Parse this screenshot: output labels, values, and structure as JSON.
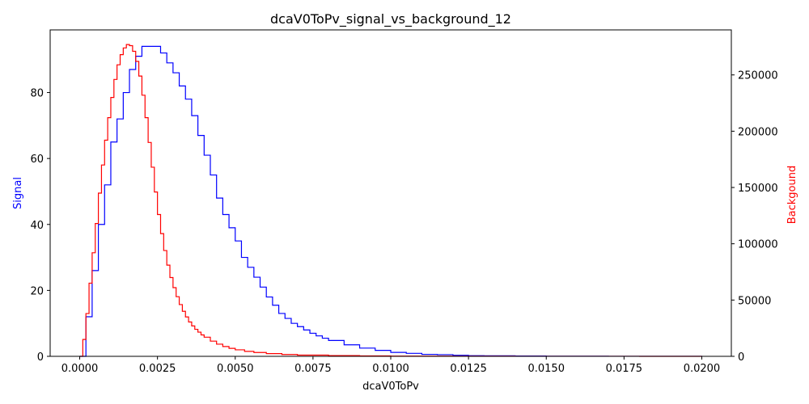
{
  "chart_data": {
    "type": "line",
    "title": "dcaV0ToPv_signal_vs_background_12",
    "xlabel": "dcaV0ToPv",
    "ylabel_left": "Signal",
    "ylabel_right": "Backgound",
    "xlim": [
      -0.00095,
      0.02095
    ],
    "ylim_left": [
      0,
      99
    ],
    "ylim_right": [
      0,
      290000
    ],
    "grid": false,
    "x_ticks": [
      "0.0000",
      "0.0025",
      "0.0050",
      "0.0075",
      "0.0100",
      "0.0125",
      "0.0150",
      "0.0175",
      "0.0200"
    ],
    "x_tick_values": [
      0,
      0.0025,
      0.005,
      0.0075,
      0.01,
      0.0125,
      0.015,
      0.0175,
      0.02
    ],
    "y_left_ticks": [
      "0",
      "20",
      "40",
      "60",
      "80"
    ],
    "y_left_tick_values": [
      0,
      20,
      40,
      60,
      80
    ],
    "y_right_ticks": [
      "0",
      "50000",
      "100000",
      "150000",
      "200000",
      "250000"
    ],
    "y_right_tick_values": [
      0,
      50000,
      100000,
      150000,
      200000,
      250000
    ],
    "series": [
      {
        "name": "Signal",
        "axis": "left",
        "color": "#0000ff",
        "x": [
          0.0,
          0.0002,
          0.0004,
          0.0006,
          0.0008,
          0.001,
          0.0012,
          0.0014,
          0.0016,
          0.0018,
          0.002,
          0.0022,
          0.0024,
          0.0026,
          0.0028,
          0.003,
          0.0032,
          0.0034,
          0.0036,
          0.0038,
          0.004,
          0.0042,
          0.0044,
          0.0046,
          0.0048,
          0.005,
          0.0052,
          0.0054,
          0.0056,
          0.0058,
          0.006,
          0.0062,
          0.0064,
          0.0066,
          0.0068,
          0.007,
          0.0072,
          0.0074,
          0.0076,
          0.0078,
          0.008,
          0.0085,
          0.009,
          0.0095,
          0.01,
          0.0105,
          0.011,
          0.0115,
          0.012,
          0.0125,
          0.013,
          0.014,
          0.015,
          0.016,
          0.017,
          0.018,
          0.019,
          0.02
        ],
        "values": [
          0,
          12,
          26,
          40,
          52,
          65,
          72,
          80,
          87,
          91,
          94,
          94,
          94,
          92,
          89,
          86,
          82,
          78,
          73,
          67,
          61,
          55,
          48,
          43,
          39,
          35,
          30,
          27,
          24,
          21,
          18,
          15.5,
          13,
          11.5,
          10,
          9,
          8,
          7,
          6.2,
          5.5,
          4.8,
          3.5,
          2.5,
          1.8,
          1.2,
          0.9,
          0.6,
          0.5,
          0.3,
          0.2,
          0.15,
          0.1,
          0.05,
          0.03,
          0.02,
          0.01,
          0.01,
          0
        ]
      },
      {
        "name": "Backgound",
        "axis": "right",
        "color": "#ff0000",
        "x": [
          0.0,
          0.0001,
          0.0002,
          0.0003,
          0.0004,
          0.0005,
          0.0006,
          0.0007,
          0.0008,
          0.0009,
          0.001,
          0.0011,
          0.0012,
          0.0013,
          0.0014,
          0.0015,
          0.0016,
          0.0017,
          0.0018,
          0.0019,
          0.002,
          0.0021,
          0.0022,
          0.0023,
          0.0024,
          0.0025,
          0.0026,
          0.0027,
          0.0028,
          0.0029,
          0.003,
          0.0031,
          0.0032,
          0.0033,
          0.0034,
          0.0035,
          0.0036,
          0.0037,
          0.0038,
          0.0039,
          0.004,
          0.0042,
          0.0044,
          0.0046,
          0.0048,
          0.005,
          0.0053,
          0.0056,
          0.006,
          0.0065,
          0.007,
          0.008,
          0.009,
          0.01,
          0.012,
          0.014,
          0.016,
          0.018,
          0.02
        ],
        "values": [
          0,
          15000,
          38000,
          65000,
          92000,
          118000,
          145000,
          170000,
          192000,
          212000,
          230000,
          246000,
          259000,
          268000,
          274000,
          277000,
          276000,
          271000,
          262000,
          249000,
          232000,
          212000,
          190000,
          168000,
          146000,
          126000,
          109000,
          94000,
          81000,
          70000,
          61000,
          53000,
          46000,
          40000,
          35000,
          30500,
          27000,
          24000,
          21500,
          19000,
          17000,
          13500,
          10800,
          8700,
          7100,
          5800,
          4400,
          3400,
          2400,
          1600,
          1100,
          600,
          350,
          220,
          100,
          60,
          40,
          25,
          15
        ]
      }
    ]
  }
}
